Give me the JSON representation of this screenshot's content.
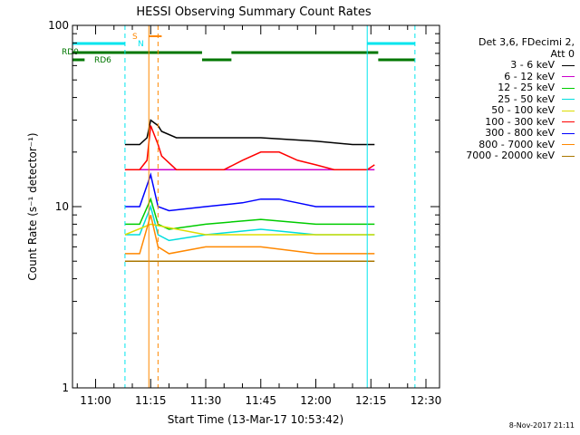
{
  "chart_data": {
    "type": "line",
    "title": "HESSI Observing Summary Count Rates",
    "xlabel": "Start Time (13-Mar-17 10:53:42)",
    "ylabel": "Count Rate (s⁻¹ detector⁻¹)",
    "yscale": "log",
    "ylim": [
      1,
      100
    ],
    "xlim": [
      "10:53:42",
      "12:33:42"
    ],
    "x_ticks": [
      "11:00",
      "11:15",
      "11:30",
      "11:45",
      "12:00",
      "12:15",
      "12:30"
    ],
    "y_ticks": [
      "1",
      "10",
      "100"
    ],
    "legend_header": [
      "Det 3,6, FDecimi 2,",
      "Att 0"
    ],
    "series": [
      {
        "name": "3 - 6 keV",
        "color": "#000000",
        "x": [
          "11:08",
          "11:12",
          "11:14",
          "11:15",
          "11:17",
          "11:18",
          "11:22",
          "11:30",
          "11:45",
          "12:00",
          "12:10",
          "12:14",
          "12:16"
        ],
        "values": [
          22,
          22,
          24,
          30,
          28,
          26,
          24,
          24,
          24,
          23,
          22,
          22,
          22
        ]
      },
      {
        "name": "6 - 12 keV",
        "color": "#cc00cc",
        "x": [
          "11:08",
          "12:16"
        ],
        "values": [
          16,
          16
        ]
      },
      {
        "name": "12 - 25 keV",
        "color": "#00cc00",
        "x": [
          "11:08",
          "11:12",
          "11:15",
          "11:17",
          "11:20",
          "11:30",
          "11:45",
          "12:00",
          "12:14",
          "12:16"
        ],
        "values": [
          8,
          8,
          11,
          8,
          7.5,
          8,
          8.5,
          8,
          8,
          8
        ]
      },
      {
        "name": "25 - 50 keV",
        "color": "#00dddd",
        "x": [
          "11:08",
          "11:12",
          "11:15",
          "11:17",
          "11:20",
          "11:30",
          "11:45",
          "12:00",
          "12:14",
          "12:16"
        ],
        "values": [
          7,
          7,
          10,
          7,
          6.5,
          7,
          7.5,
          7,
          7,
          7
        ]
      },
      {
        "name": "50 - 100 keV",
        "color": "#dddd00",
        "x": [
          "11:08",
          "11:15",
          "11:30",
          "12:00",
          "12:16"
        ],
        "values": [
          7,
          8,
          7,
          7,
          7
        ]
      },
      {
        "name": "100 - 300 keV",
        "color": "#ff0000",
        "x": [
          "11:08",
          "11:12",
          "11:14",
          "11:15",
          "11:17",
          "11:18",
          "11:22",
          "11:30",
          "11:35",
          "11:40",
          "11:45",
          "11:50",
          "11:55",
          "12:00",
          "12:05",
          "12:10",
          "12:14",
          "12:16"
        ],
        "values": [
          16,
          16,
          18,
          28,
          22,
          19,
          16,
          16,
          16,
          18,
          20,
          20,
          18,
          17,
          16,
          16,
          16,
          17
        ]
      },
      {
        "name": "300 - 800 keV",
        "color": "#0000ff",
        "x": [
          "11:08",
          "11:12",
          "11:15",
          "11:17",
          "11:20",
          "11:30",
          "11:40",
          "11:45",
          "11:50",
          "11:55",
          "12:00",
          "12:05",
          "12:14",
          "12:16"
        ],
        "values": [
          10,
          10,
          15,
          10,
          9.5,
          10,
          10.5,
          11,
          11,
          10.5,
          10,
          10,
          10,
          10
        ]
      },
      {
        "name": "800 - 7000 keV",
        "color": "#ff8800",
        "x": [
          "11:08",
          "11:12",
          "11:15",
          "11:17",
          "11:20",
          "11:30",
          "11:45",
          "12:00",
          "12:14",
          "12:16"
        ],
        "values": [
          5.5,
          5.5,
          9,
          6,
          5.5,
          6,
          6,
          5.5,
          5.5,
          5.5
        ]
      },
      {
        "name": "7000 - 20000 keV",
        "color": "#aa7700",
        "x": [
          "11:08",
          "12:16"
        ],
        "values": [
          5,
          5
        ]
      }
    ],
    "segment_labels": [
      "RD0",
      "RD6",
      "S",
      "N"
    ]
  },
  "footer": {
    "date_stamp": "8-Nov-2017 21:11"
  }
}
